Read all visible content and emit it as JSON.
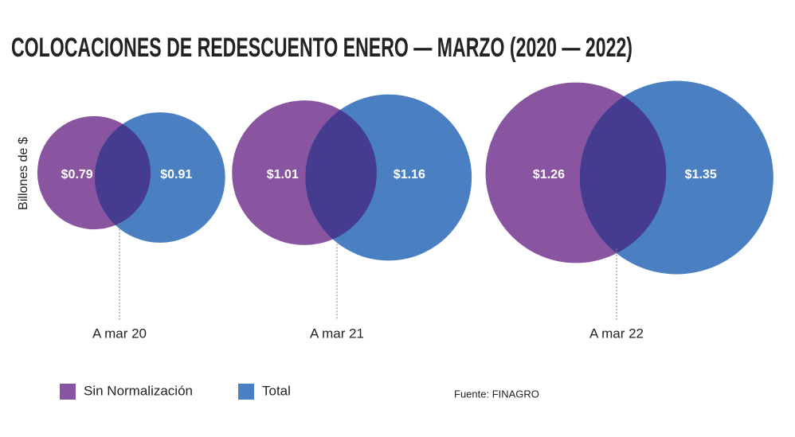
{
  "chart_data": {
    "type": "bubble",
    "title": "COLOCACIONES DE REDESCUENTO ENERO — MARZO (2020 — 2022)",
    "y_label": "Billones de $",
    "categories": [
      "A mar 20",
      "A mar 21",
      "A mar 22"
    ],
    "series": [
      {
        "name": "Sin Normalización",
        "color": "#8a55a0",
        "values": [
          0.79,
          1.01,
          1.26
        ],
        "value_labels": [
          "$0.79",
          "$1.01",
          "$1.26"
        ]
      },
      {
        "name": "Total",
        "color": "#4a80c2",
        "values": [
          0.91,
          1.16,
          1.35
        ],
        "value_labels": [
          "$0.91",
          "$1.16",
          "$1.35"
        ]
      }
    ],
    "overlap_color": "#453b8f",
    "source": "Fuente: FINAGRO"
  }
}
